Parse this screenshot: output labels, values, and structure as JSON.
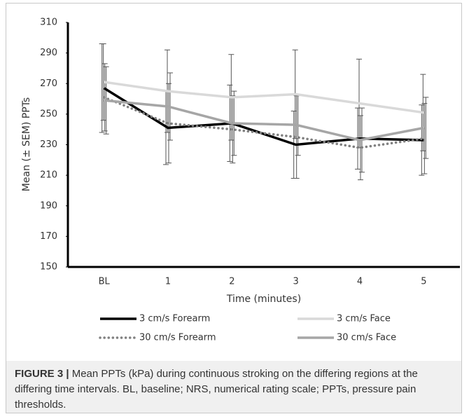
{
  "chart_data": {
    "type": "line",
    "y_label": "Mean (± SEM) PPTs",
    "x_label": "Time (minutes)",
    "categories": [
      "BL",
      "1",
      "2",
      "3",
      "4",
      "5"
    ],
    "ylim": [
      150,
      310
    ],
    "yticks": [
      150,
      170,
      190,
      210,
      230,
      250,
      270,
      290,
      310
    ],
    "series": [
      {
        "name": "3 cm/s Forearm",
        "color": "#000000",
        "style": "solid",
        "values": [
          267,
          241,
          244,
          230,
          234,
          233
        ],
        "errors": [
          29,
          24,
          25,
          22,
          20,
          23
        ]
      },
      {
        "name": "3 cm/s Face",
        "color": "#d9d9d9",
        "style": "solid",
        "values": [
          271,
          265,
          261,
          263,
          257,
          251
        ],
        "errors": [
          25,
          27,
          28,
          29,
          29,
          25
        ]
      },
      {
        "name": "30 cm/s Forearm",
        "color": "#808080",
        "style": "dotted",
        "values": [
          261,
          244,
          240,
          235,
          228,
          234
        ],
        "errors": [
          22,
          26,
          22,
          27,
          21,
          23
        ]
      },
      {
        "name": "30 cm/s Face",
        "color": "#a6a6a6",
        "style": "solid",
        "values": [
          259,
          255,
          244,
          243,
          233,
          241
        ],
        "errors": [
          22,
          22,
          21,
          20,
          21,
          20
        ]
      }
    ]
  },
  "caption": {
    "label": "FIGURE 3 |",
    "text": "Mean PPTs (kPa) during continuous stroking on the differing regions at the differing time intervals. BL, baseline; NRS, numerical rating scale; PPTs, pressure pain thresholds."
  }
}
